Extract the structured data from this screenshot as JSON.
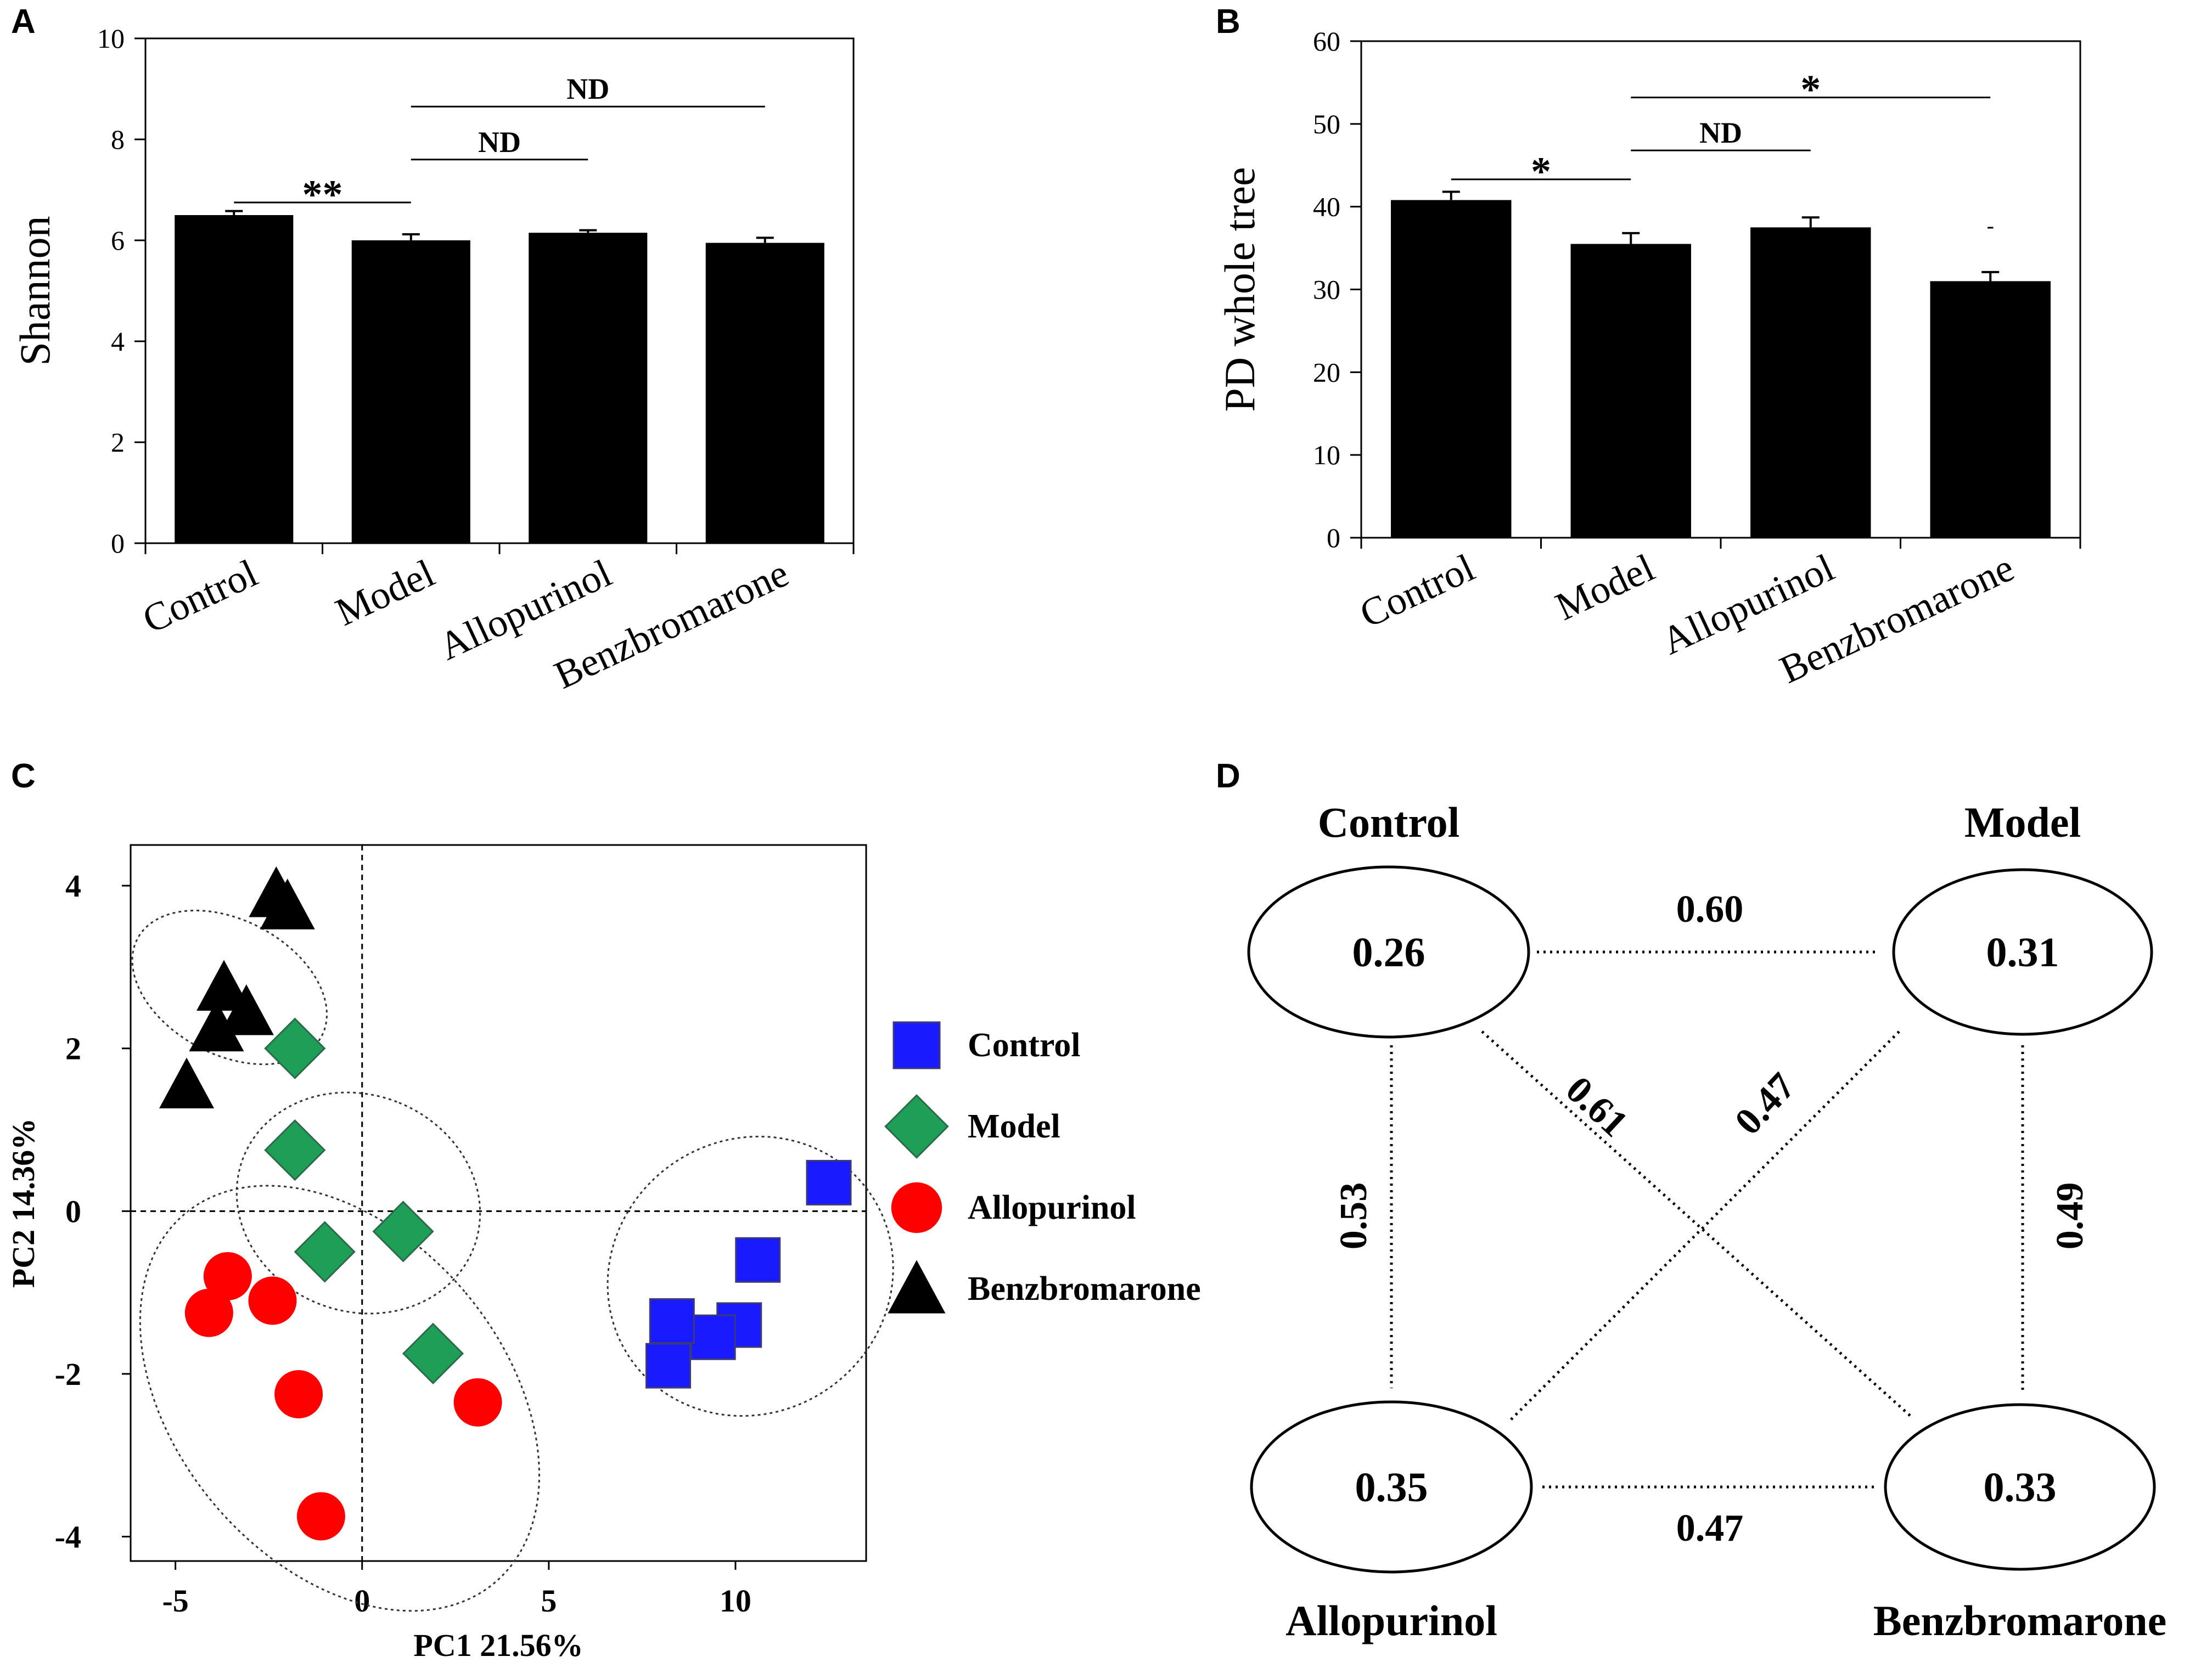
{
  "panels": {
    "a": {
      "letter": "A",
      "chart_data": {
        "type": "bar",
        "ylabel": "Shannon",
        "xlabel": "",
        "ylim": [
          0,
          10
        ],
        "yticks": [
          0,
          2,
          4,
          6,
          8,
          10
        ],
        "categories": [
          "Control",
          "Model",
          "Allopurinol",
          "Benzbromarone"
        ],
        "values": [
          6.5,
          6.0,
          6.15,
          5.95
        ],
        "errors": [
          0.08,
          0.12,
          0.05,
          0.1
        ],
        "significance": [
          {
            "from": 0,
            "to": 1,
            "label": "**",
            "y": 6.75
          },
          {
            "from": 1,
            "to": 2,
            "label": "ND",
            "y": 7.6
          },
          {
            "from": 1,
            "to": 3,
            "label": "ND",
            "y": 8.65
          }
        ]
      }
    },
    "b": {
      "letter": "B",
      "chart_data": {
        "type": "bar",
        "ylabel": "PD whole tree",
        "xlabel": "",
        "ylim": [
          0,
          60
        ],
        "yticks": [
          0,
          10,
          20,
          30,
          40,
          50,
          60
        ],
        "categories": [
          "Control",
          "Model",
          "Allopurinol",
          "Benzbromarone"
        ],
        "values": [
          40.8,
          35.5,
          37.5,
          31.0
        ],
        "errors": [
          1.0,
          1.3,
          1.2,
          1.1
        ],
        "significance": [
          {
            "from": 0,
            "to": 1,
            "label": "*",
            "y": 43.3
          },
          {
            "from": 1,
            "to": 2,
            "label": "ND",
            "y": 46.8
          },
          {
            "from": 1,
            "to": 3,
            "label": "*",
            "y": 53.2
          }
        ],
        "annotations": [
          {
            "category": 3,
            "label": "-",
            "y": 37.5
          }
        ]
      }
    },
    "c": {
      "letter": "C",
      "chart_data": {
        "type": "scatter",
        "xlabel": "PC1 21.56%",
        "ylabel": "PC2 14.36%",
        "xlim": [
          -6.2,
          13.5
        ],
        "ylim": [
          -4.3,
          4.5
        ],
        "xticks": [
          -5,
          0,
          5,
          10
        ],
        "yticks": [
          -4,
          -2,
          0,
          2,
          4
        ],
        "xticklabels": [
          "-5",
          "0",
          "5",
          "10"
        ],
        "yticklabels": [
          "-4",
          "-2",
          "0",
          "2",
          "4"
        ],
        "series": [
          {
            "name": "Control",
            "marker": "square",
            "color": "#1a1aff",
            "points": [
              [
                12.5,
                0.35
              ],
              [
                10.6,
                -0.6
              ],
              [
                10.1,
                -1.4
              ],
              [
                9.4,
                -1.55
              ],
              [
                8.3,
                -1.35
              ],
              [
                8.2,
                -1.9
              ]
            ]
          },
          {
            "name": "Model",
            "marker": "diamond",
            "color": "#1f9e57",
            "points": [
              [
                -1.8,
                2.0
              ],
              [
                -1.8,
                0.75
              ],
              [
                -1.0,
                -0.5
              ],
              [
                1.1,
                -0.25
              ],
              [
                1.9,
                -1.75
              ]
            ]
          },
          {
            "name": "Allopurinol",
            "marker": "circle",
            "color": "#ff0000",
            "points": [
              [
                -3.6,
                -0.8
              ],
              [
                -4.1,
                -1.25
              ],
              [
                -2.4,
                -1.1
              ],
              [
                -1.7,
                -2.25
              ],
              [
                3.1,
                -2.35
              ],
              [
                -1.1,
                -3.75
              ]
            ]
          },
          {
            "name": "Benzbromarone",
            "marker": "triangle",
            "color": "#000000",
            "points": [
              [
                -2.3,
                3.9
              ],
              [
                -2.0,
                3.75
              ],
              [
                -3.7,
                2.75
              ],
              [
                -3.9,
                2.25
              ],
              [
                -3.1,
                2.45
              ],
              [
                -4.7,
                1.55
              ]
            ]
          }
        ],
        "ellipses": [
          {
            "group": "Benzbromarone",
            "cx": -3.55,
            "cy": 2.75,
            "rx": 1.8,
            "ry": 0.8,
            "angle": -62
          },
          {
            "group": "Model",
            "cx": -0.1,
            "cy": 0.1,
            "rx": 2.9,
            "ry": 0.95,
            "angle": -68
          },
          {
            "group": "Allopurinol",
            "cx": -0.6,
            "cy": -2.3,
            "rx": 4.4,
            "ry": 1.85,
            "angle": -40
          },
          {
            "group": "Control",
            "cx": 10.4,
            "cy": -0.8,
            "rx": 3.9,
            "ry": 1.05,
            "angle": -35
          }
        ],
        "legend_position": "right"
      }
    },
    "d": {
      "letter": "D",
      "nodes": [
        {
          "id": "control",
          "label": "Control",
          "value": "0.26"
        },
        {
          "id": "model",
          "label": "Model",
          "value": "0.31"
        },
        {
          "id": "allopurinol",
          "label": "Allopurinol",
          "value": "0.35"
        },
        {
          "id": "benzbromarone",
          "label": "Benzbromarone",
          "value": "0.33"
        }
      ],
      "edges": [
        {
          "from": "control",
          "to": "model",
          "value": "0.60"
        },
        {
          "from": "control",
          "to": "benzbromarone",
          "value": "0.61"
        },
        {
          "from": "model",
          "to": "allopurinol",
          "value": "0.47"
        },
        {
          "from": "control",
          "to": "allopurinol",
          "value": "0.53"
        },
        {
          "from": "model",
          "to": "benzbromarone",
          "value": "0.49"
        },
        {
          "from": "allopurinol",
          "to": "benzbromarone",
          "value": "0.47"
        }
      ]
    }
  }
}
